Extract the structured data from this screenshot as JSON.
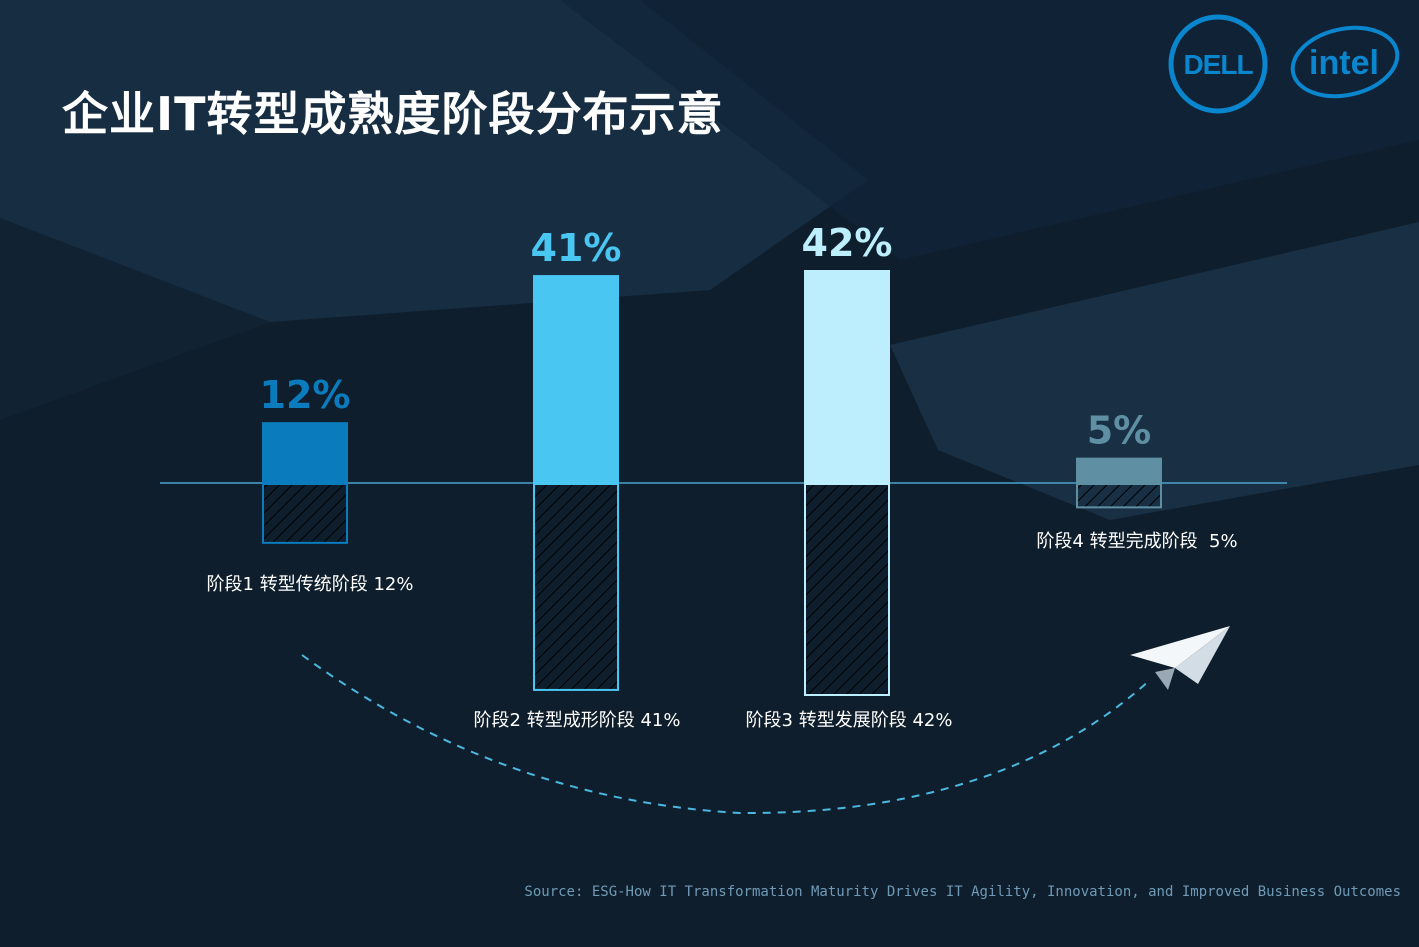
{
  "title": "企业IT转型成熟度阶段分布示意",
  "source": "Source: ESG-How IT Transformation Maturity Drives IT Agility, Innovation, and Improved Business Outcomes",
  "logos": {
    "dell": "DELL",
    "intel": "intel"
  },
  "colors": {
    "background": "#0f1e2c",
    "stage1": "#0a7bbd",
    "stage2": "#4ac6f2",
    "stage3": "#bdeefd",
    "stage4": "#5f8fa3",
    "axis": "#4aa3cf",
    "arrow": "#4ab8e0"
  },
  "icons": [
    "paper-plane-icon"
  ],
  "chart_data": {
    "type": "bar",
    "categories": [
      "阶段1 转型传统阶段 12%",
      "阶段2 转型成形阶段 41%",
      "阶段3 转型发展阶段 42%",
      "阶段4 转型完成阶段  5%"
    ],
    "values": [
      12,
      41,
      42,
      5
    ],
    "data_labels": [
      "12%",
      "41%",
      "42%",
      "5%"
    ],
    "ylim": [
      0,
      42
    ],
    "mirrored_hatched_reflection": true
  }
}
